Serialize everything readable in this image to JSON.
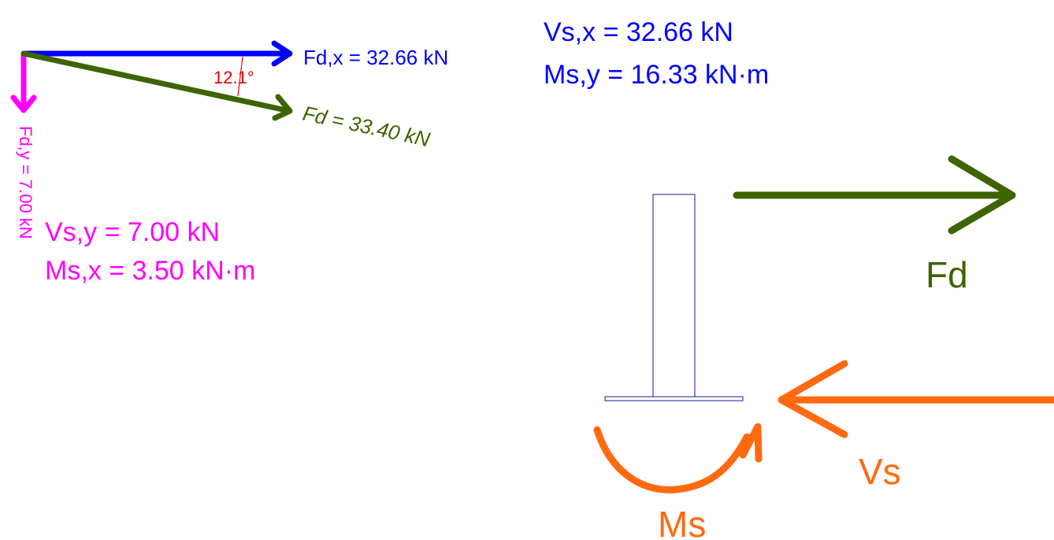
{
  "colors": {
    "fx": "#0000ff",
    "fy": "#ff00ff",
    "fd": "#3e6400",
    "angle": "#e00000",
    "reaction": "#ff6a10",
    "member": "#1a1a9a"
  },
  "force_diagram": {
    "fx_label": "Fd,x = 32.66 kN",
    "fy_label": "Fd,y = 7.00 kN",
    "fd_label": "Fd = 33.40 kN",
    "angle_label": "12.1°"
  },
  "support_reactions": {
    "x_direction": {
      "shear": "Vs,x = 32.66 kN",
      "moment": "Ms,y = 16.33 kN·m"
    },
    "y_direction": {
      "shear": "Vs,y = 7.00 kN",
      "moment": "Ms,x = 3.50 kN·m"
    }
  },
  "free_body": {
    "applied_force_label": "Fd",
    "shear_label": "Vs",
    "moment_label": "Ms"
  }
}
